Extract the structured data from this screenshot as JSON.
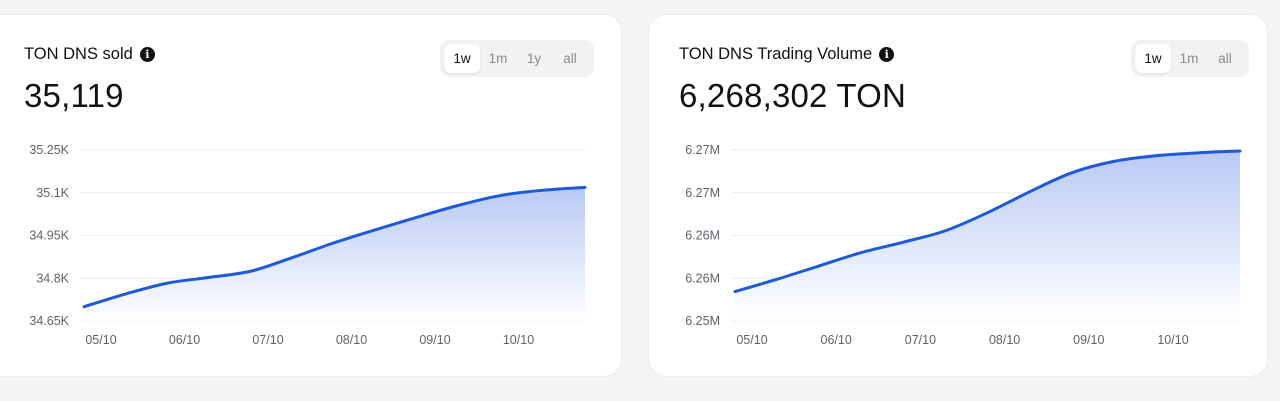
{
  "cards": [
    {
      "title": "TON DNS sold",
      "value": "35,119",
      "tabs": [
        {
          "label": "1w",
          "active": true
        },
        {
          "label": "1m",
          "active": false
        },
        {
          "label": "1y",
          "active": false
        },
        {
          "label": "all",
          "active": false
        }
      ]
    },
    {
      "title": "TON DNS Trading Volume",
      "value": "6,268,302 TON",
      "tabs": [
        {
          "label": "1w",
          "active": true
        },
        {
          "label": "1m",
          "active": false
        },
        {
          "label": "all",
          "active": false
        }
      ]
    }
  ],
  "colors": {
    "line": "#1f5ad6",
    "fill_top": "#b8c9f4",
    "grid": "#ececec"
  },
  "chart_data": [
    {
      "type": "area",
      "title": "",
      "xlabel": "",
      "ylabel": "",
      "x_ticks": [
        "05/10",
        "06/10",
        "07/10",
        "08/10",
        "09/10",
        "10/10"
      ],
      "y_ticks": [
        "34.65K",
        "34.8K",
        "34.95K",
        "35.1K",
        "35.25K"
      ],
      "ylim": [
        34650,
        35250
      ],
      "xlim": [
        0,
        6
      ],
      "grid": true,
      "series": [
        {
          "x": [
            0,
            0.5,
            1,
            1.5,
            2,
            2.5,
            3,
            3.5,
            4,
            4.5,
            5,
            5.5,
            6
          ],
          "values": [
            34700,
            34745,
            34783,
            34803,
            34825,
            34873,
            34925,
            34971,
            35015,
            35057,
            35091,
            35109,
            35119
          ]
        }
      ]
    },
    {
      "type": "area",
      "title": "",
      "xlabel": "",
      "ylabel": "",
      "x_ticks": [
        "05/10",
        "06/10",
        "07/10",
        "08/10",
        "09/10",
        "10/10"
      ],
      "y_ticks": [
        "6.25M",
        "6.26M",
        "6.26M",
        "6.27M",
        "6.27M"
      ],
      "ylim": [
        6.2504,
        6.2684
      ],
      "xlim": [
        0,
        6
      ],
      "grid": true,
      "series": [
        {
          "x": [
            0,
            0.5,
            1,
            1.5,
            2,
            2.5,
            3,
            3.5,
            4,
            4.5,
            5,
            5.5,
            6
          ],
          "values": [
            6.2535,
            6.2548,
            6.2562,
            6.2576,
            6.2587,
            6.2599,
            6.2618,
            6.264,
            6.266,
            6.2672,
            6.2678,
            6.2681,
            6.2683
          ]
        }
      ]
    }
  ]
}
